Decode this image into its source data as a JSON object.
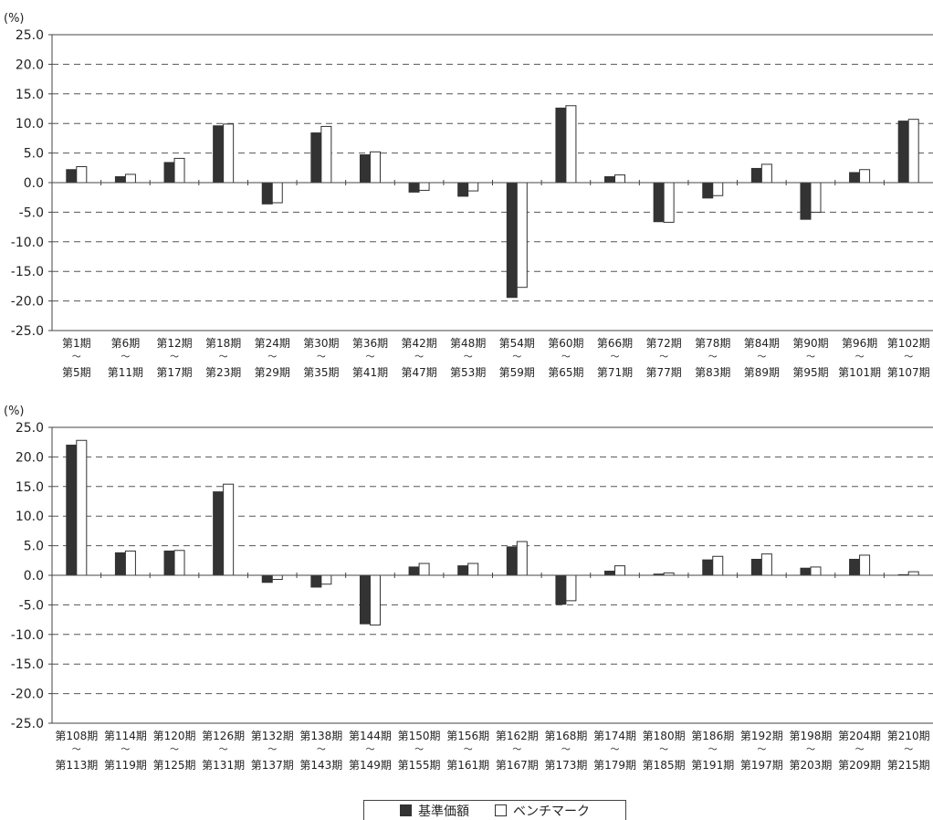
{
  "chart_data": [
    {
      "type": "bar",
      "unit_label": "(%)",
      "ylim": [
        -25,
        25
      ],
      "yticks": [
        "25.0",
        "20.0",
        "15.0",
        "10.0",
        "5.0",
        "0.0",
        "-5.0",
        "-10.0",
        "-15.0",
        "-20.0",
        "-25.0"
      ],
      "grid": true,
      "categories": [
        [
          "第1期",
          "第5期"
        ],
        [
          "第6期",
          "第11期"
        ],
        [
          "第12期",
          "第17期"
        ],
        [
          "第18期",
          "第23期"
        ],
        [
          "第24期",
          "第29期"
        ],
        [
          "第30期",
          "第35期"
        ],
        [
          "第36期",
          "第41期"
        ],
        [
          "第42期",
          "第47期"
        ],
        [
          "第48期",
          "第53期"
        ],
        [
          "第54期",
          "第59期"
        ],
        [
          "第60期",
          "第65期"
        ],
        [
          "第66期",
          "第71期"
        ],
        [
          "第72期",
          "第77期"
        ],
        [
          "第78期",
          "第83期"
        ],
        [
          "第84期",
          "第89期"
        ],
        [
          "第90期",
          "第95期"
        ],
        [
          "第96期",
          "第101期"
        ],
        [
          "第102期",
          "第107期"
        ]
      ],
      "series": [
        {
          "name": "基準価額",
          "color": "#333333",
          "values": [
            2.2,
            1.0,
            3.4,
            9.6,
            -3.6,
            8.4,
            4.7,
            -1.6,
            -2.3,
            -19.4,
            12.6,
            1.0,
            -6.6,
            -2.6,
            2.4,
            -6.2,
            1.7,
            10.4
          ]
        },
        {
          "name": "ベンチマーク",
          "color": "#ffffff",
          "values": [
            2.7,
            1.4,
            4.1,
            9.9,
            -3.4,
            9.5,
            5.2,
            -1.3,
            -1.4,
            -17.7,
            13.0,
            1.3,
            -6.7,
            -2.2,
            3.1,
            -5.0,
            2.2,
            10.7
          ]
        }
      ]
    },
    {
      "type": "bar",
      "unit_label": "(%)",
      "ylim": [
        -25,
        25
      ],
      "yticks": [
        "25.0",
        "20.0",
        "15.0",
        "10.0",
        "5.0",
        "0.0",
        "-5.0",
        "-10.0",
        "-15.0",
        "-20.0",
        "-25.0"
      ],
      "grid": true,
      "categories": [
        [
          "第108期",
          "第113期"
        ],
        [
          "第114期",
          "第119期"
        ],
        [
          "第120期",
          "第125期"
        ],
        [
          "第126期",
          "第131期"
        ],
        [
          "第132期",
          "第137期"
        ],
        [
          "第138期",
          "第143期"
        ],
        [
          "第144期",
          "第149期"
        ],
        [
          "第150期",
          "第155期"
        ],
        [
          "第156期",
          "第161期"
        ],
        [
          "第162期",
          "第167期"
        ],
        [
          "第168期",
          "第173期"
        ],
        [
          "第174期",
          "第179期"
        ],
        [
          "第180期",
          "第185期"
        ],
        [
          "第186期",
          "第191期"
        ],
        [
          "第192期",
          "第197期"
        ],
        [
          "第198期",
          "第203期"
        ],
        [
          "第204期",
          "第209期"
        ],
        [
          "第210期",
          "第215期"
        ]
      ],
      "series": [
        {
          "name": "基準価額",
          "color": "#333333",
          "values": [
            22.0,
            3.8,
            4.1,
            14.1,
            -1.2,
            -2.0,
            -8.2,
            1.4,
            1.6,
            4.8,
            -4.9,
            0.7,
            0.2,
            2.6,
            2.7,
            1.2,
            2.7,
            0.1
          ]
        },
        {
          "name": "ベンチマーク",
          "color": "#ffffff",
          "values": [
            22.8,
            4.1,
            4.2,
            15.4,
            -0.7,
            -1.5,
            -8.4,
            2.0,
            2.0,
            5.7,
            -4.3,
            1.6,
            0.4,
            3.2,
            3.6,
            1.4,
            3.4,
            0.6
          ]
        }
      ]
    }
  ],
  "legend": {
    "items": [
      {
        "label": "基準価額",
        "color": "#333333"
      },
      {
        "label": "ベンチマーク",
        "color": "#ffffff"
      }
    ]
  }
}
